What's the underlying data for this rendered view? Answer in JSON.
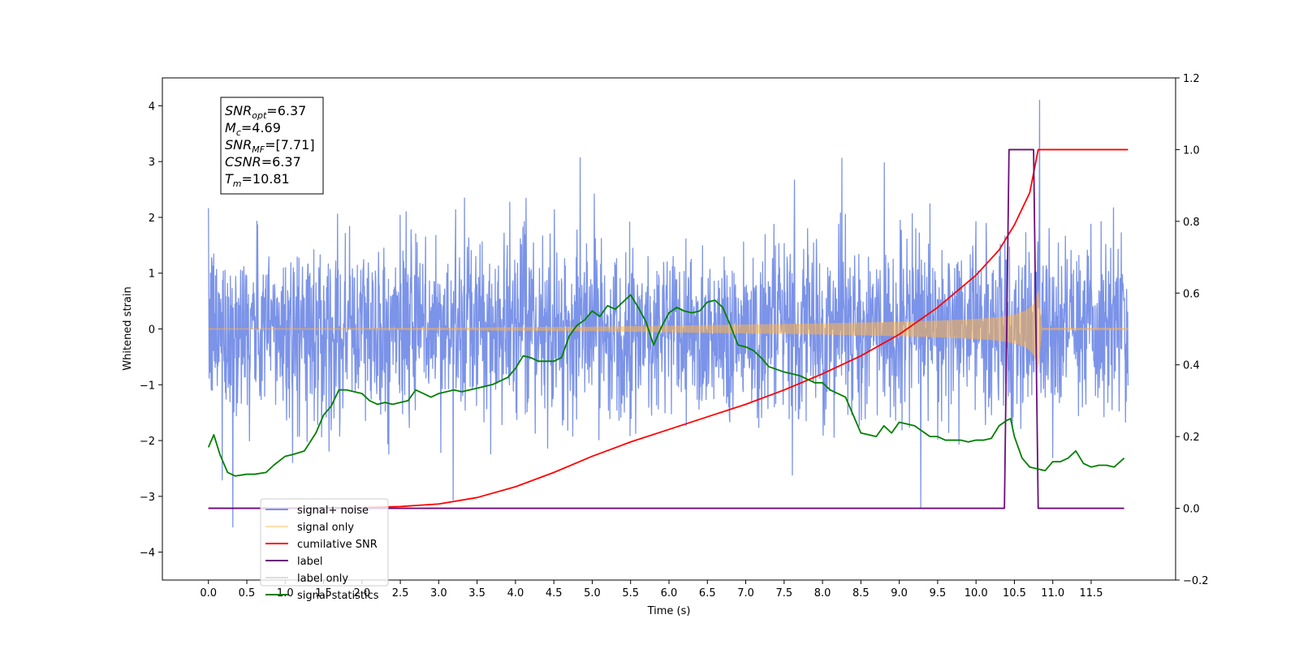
{
  "chart_data": {
    "type": "line",
    "title": "",
    "xlabel": "Time (s)",
    "ylabel": "Whitened strain",
    "ylabel_right": "",
    "xlim": [
      -0.6,
      12.6
    ],
    "ylim": [
      -4.5,
      4.5
    ],
    "ylim_right": [
      -0.2,
      1.2
    ],
    "x_ticks": [
      0.0,
      0.5,
      1.0,
      1.5,
      2.0,
      2.5,
      3.0,
      3.5,
      4.0,
      4.5,
      5.0,
      5.5,
      6.0,
      6.5,
      7.0,
      7.5,
      8.0,
      8.5,
      9.0,
      9.5,
      10.0,
      10.5,
      11.0,
      11.5
    ],
    "x_tick_labels": [
      "0.0",
      "0.5",
      "1.0",
      "1.5",
      "2.0",
      "2.5",
      "3.0",
      "3.5",
      "4.0",
      "4.5",
      "5.0",
      "5.5",
      "6.0",
      "6.5",
      "7.0",
      "7.5",
      "8.0",
      "8.5",
      "9.0",
      "9.5",
      "10.0",
      "10.5",
      "11.0",
      "11.5"
    ],
    "y_ticks": [
      -4,
      -3,
      -2,
      -1,
      0,
      1,
      2,
      3,
      4
    ],
    "y_tick_labels": [
      "−4",
      "−3",
      "−2",
      "−1",
      "0",
      "1",
      "2",
      "3",
      "4"
    ],
    "y_right_ticks": [
      -0.2,
      0.0,
      0.2,
      0.4,
      0.6,
      0.8,
      1.0,
      1.2
    ],
    "y_right_tick_labels": [
      "−0.2",
      "0.0",
      "0.2",
      "0.4",
      "0.6",
      "0.8",
      "1.0",
      "1.2"
    ],
    "grid": false,
    "legend_placement": "lower-left",
    "series": [
      {
        "name": "signal+ noise",
        "color": "#7b93e8",
        "axis": "left",
        "kind": "noise",
        "x_range": [
          0.0,
          11.98
        ],
        "typical_amplitude": [
          -2.0,
          2.0
        ],
        "peak_max": 4.1,
        "peak_min": -3.55
      },
      {
        "name": "signal only",
        "color": "#ffb347",
        "axis": "left",
        "kind": "chirp",
        "x_range": [
          0.0,
          11.98
        ],
        "merger_time": 10.81,
        "envelope": {
          "x": [
            0,
            1,
            2,
            3,
            4,
            5,
            6,
            7,
            8,
            9,
            9.5,
            10,
            10.3,
            10.5,
            10.65,
            10.75,
            10.81,
            10.86,
            11.98
          ],
          "y": [
            0.01,
            0.01,
            0.015,
            0.02,
            0.03,
            0.04,
            0.06,
            0.08,
            0.1,
            0.13,
            0.15,
            0.18,
            0.21,
            0.26,
            0.33,
            0.45,
            0.7,
            0.02,
            0.02
          ]
        }
      },
      {
        "name": "cumilative SNR",
        "color": "#ff0000",
        "axis": "right",
        "x": [
          0,
          1,
          2,
          2.5,
          3,
          3.5,
          4,
          4.5,
          5,
          5.5,
          6,
          6.5,
          7,
          7.5,
          8,
          8.5,
          9,
          9.5,
          10,
          10.3,
          10.5,
          10.7,
          10.81,
          10.85,
          11.0,
          11.5,
          11.98
        ],
        "y": [
          0.0,
          0.0,
          0.002,
          0.005,
          0.012,
          0.03,
          0.06,
          0.1,
          0.145,
          0.185,
          0.22,
          0.255,
          0.29,
          0.33,
          0.375,
          0.425,
          0.485,
          0.56,
          0.65,
          0.72,
          0.79,
          0.88,
          1.0,
          1.0,
          1.0,
          1.0,
          1.0
        ]
      },
      {
        "name": "label",
        "color": "#6a0d7a",
        "axis": "right",
        "x": [
          0.0,
          10.37,
          10.43,
          10.75,
          10.81,
          11.93
        ],
        "y": [
          0.0,
          0.0,
          1.0,
          1.0,
          0.0,
          0.0
        ]
      },
      {
        "name": "label only",
        "color": "#dddddd",
        "axis": "right",
        "legend_only": true
      },
      {
        "name": "signal statistics",
        "color": "#008000",
        "axis": "right",
        "x": [
          0.0,
          0.07,
          0.15,
          0.25,
          0.35,
          0.5,
          0.6,
          0.75,
          0.85,
          1.0,
          1.1,
          1.25,
          1.4,
          1.5,
          1.6,
          1.7,
          1.8,
          1.9,
          2.0,
          2.1,
          2.2,
          2.3,
          2.4,
          2.5,
          2.6,
          2.7,
          2.8,
          2.9,
          3.0,
          3.1,
          3.2,
          3.3,
          3.5,
          3.7,
          3.9,
          4.0,
          4.1,
          4.2,
          4.3,
          4.4,
          4.5,
          4.6,
          4.7,
          4.8,
          4.9,
          5.0,
          5.1,
          5.2,
          5.3,
          5.4,
          5.5,
          5.6,
          5.7,
          5.8,
          5.9,
          6.0,
          6.1,
          6.2,
          6.3,
          6.4,
          6.5,
          6.6,
          6.7,
          6.8,
          6.9,
          7.0,
          7.1,
          7.2,
          7.3,
          7.5,
          7.7,
          7.9,
          8.0,
          8.1,
          8.3,
          8.5,
          8.6,
          8.7,
          8.8,
          8.9,
          9.0,
          9.1,
          9.2,
          9.4,
          9.5,
          9.6,
          9.7,
          9.8,
          9.9,
          10.0,
          10.1,
          10.2,
          10.3,
          10.4,
          10.45,
          10.5,
          10.6,
          10.7,
          10.8,
          10.9,
          11.0,
          11.1,
          11.2,
          11.3,
          11.4,
          11.5,
          11.6,
          11.7,
          11.8,
          11.93
        ],
        "y": [
          0.17,
          0.205,
          0.15,
          0.1,
          0.09,
          0.095,
          0.095,
          0.1,
          0.12,
          0.145,
          0.15,
          0.16,
          0.21,
          0.26,
          0.285,
          0.33,
          0.33,
          0.325,
          0.32,
          0.3,
          0.29,
          0.295,
          0.29,
          0.295,
          0.3,
          0.33,
          0.32,
          0.31,
          0.32,
          0.325,
          0.33,
          0.325,
          0.335,
          0.345,
          0.365,
          0.39,
          0.425,
          0.42,
          0.41,
          0.41,
          0.41,
          0.42,
          0.48,
          0.51,
          0.525,
          0.55,
          0.535,
          0.565,
          0.555,
          0.575,
          0.595,
          0.56,
          0.52,
          0.455,
          0.505,
          0.545,
          0.56,
          0.55,
          0.545,
          0.55,
          0.575,
          0.58,
          0.56,
          0.51,
          0.455,
          0.45,
          0.44,
          0.42,
          0.395,
          0.38,
          0.37,
          0.35,
          0.35,
          0.33,
          0.31,
          0.21,
          0.205,
          0.2,
          0.23,
          0.21,
          0.24,
          0.235,
          0.23,
          0.2,
          0.2,
          0.19,
          0.19,
          0.19,
          0.185,
          0.19,
          0.19,
          0.195,
          0.23,
          0.245,
          0.25,
          0.2,
          0.14,
          0.115,
          0.11,
          0.105,
          0.13,
          0.13,
          0.14,
          0.16,
          0.125,
          0.115,
          0.12,
          0.12,
          0.115,
          0.14
        ]
      }
    ],
    "annotation_lines": [
      {
        "name": "snr-opt",
        "base": "SNR",
        "sub": "opt",
        "value": "=6.37"
      },
      {
        "name": "mc",
        "base": "M",
        "sub": "c",
        "value": "=4.69"
      },
      {
        "name": "snr-mf",
        "base": "SNR",
        "sub": "MF",
        "value": "=[7.71]"
      },
      {
        "name": "csnr",
        "base": "CSNR",
        "sub": "",
        "value": "=6.37"
      },
      {
        "name": "tm",
        "base": "T",
        "sub": "m",
        "value": "=10.81"
      }
    ]
  }
}
